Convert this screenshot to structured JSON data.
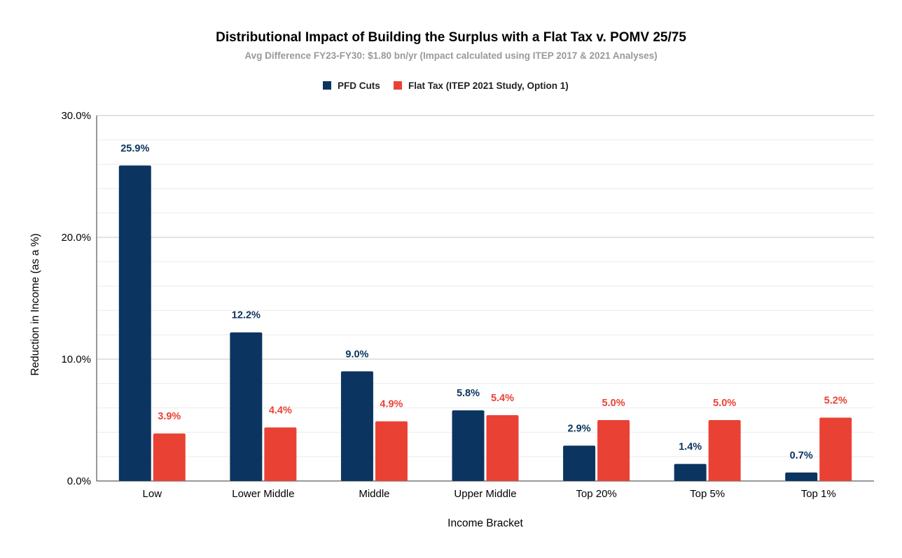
{
  "chart_data": {
    "type": "bar",
    "title": "Distributional Impact of Building the Surplus with a Flat Tax v. POMV 25/75",
    "subtitle": "Avg Difference FY23-FY30: $1.80 bn/yr (Impact calculated using ITEP 2017 & 2021 Analyses)",
    "xlabel": "Income Bracket",
    "ylabel": "Reduction in Income (as a %)",
    "categories": [
      "Low",
      "Lower Middle",
      "Middle",
      "Upper Middle",
      "Top 20%",
      "Top 5%",
      "Top 1%"
    ],
    "series": [
      {
        "name": "PFD Cuts",
        "color": "#0b3560",
        "values": [
          25.9,
          12.2,
          9.0,
          5.8,
          2.9,
          1.4,
          0.7
        ],
        "labels": [
          "25.9%",
          "12.2%",
          "9.0%",
          "5.8%",
          "2.9%",
          "1.4%",
          "0.7%"
        ]
      },
      {
        "name": "Flat Tax (ITEP 2021 Study, Option 1)",
        "color": "#e94235",
        "values": [
          3.9,
          4.4,
          4.9,
          5.4,
          5.0,
          5.0,
          5.2
        ],
        "labels": [
          "3.9%",
          "4.4%",
          "4.9%",
          "5.4%",
          "5.0%",
          "5.0%",
          "5.2%"
        ]
      }
    ],
    "ylim": [
      0,
      30
    ],
    "yticks": [
      0,
      10,
      20,
      30
    ],
    "ytick_labels": [
      "0.0%",
      "10.0%",
      "20.0%",
      "30.0%"
    ],
    "grid": true,
    "legend": "top-center"
  }
}
